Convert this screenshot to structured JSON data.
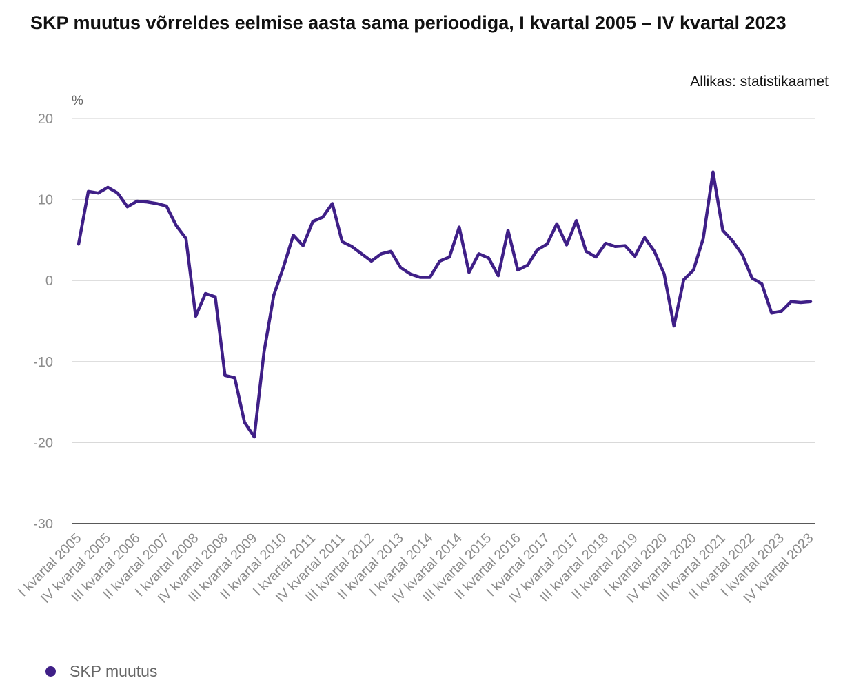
{
  "chart_data": {
    "type": "line",
    "title": "SKP muutus võrreldes eelmise aasta sama perioodiga, I kvartal 2005 – IV kvartal 2023",
    "source": "Allikas: statistikaamet",
    "ylabel": "%",
    "ylim": [
      -30,
      20
    ],
    "yticks": [
      20,
      10,
      0,
      -10,
      -20,
      -30
    ],
    "grid": true,
    "legend_position": "bottom-left",
    "x": [
      "I kvartal 2005",
      "II kvartal 2005",
      "III kvartal 2005",
      "IV kvartal 2005",
      "I kvartal 2006",
      "II kvartal 2006",
      "III kvartal 2006",
      "IV kvartal 2006",
      "I kvartal 2007",
      "II kvartal 2007",
      "III kvartal 2007",
      "IV kvartal 2007",
      "I kvartal 2008",
      "II kvartal 2008",
      "III kvartal 2008",
      "IV kvartal 2008",
      "I kvartal 2009",
      "II kvartal 2009",
      "III kvartal 2009",
      "IV kvartal 2009",
      "I kvartal 2010",
      "II kvartal 2010",
      "III kvartal 2010",
      "IV kvartal 2010",
      "I kvartal 2011",
      "II kvartal 2011",
      "III kvartal 2011",
      "IV kvartal 2011",
      "I kvartal 2012",
      "II kvartal 2012",
      "III kvartal 2012",
      "IV kvartal 2012",
      "I kvartal 2013",
      "II kvartal 2013",
      "III kvartal 2013",
      "IV kvartal 2013",
      "I kvartal 2014",
      "II kvartal 2014",
      "III kvartal 2014",
      "IV kvartal 2014",
      "I kvartal 2015",
      "II kvartal 2015",
      "III kvartal 2015",
      "IV kvartal 2015",
      "I kvartal 2016",
      "II kvartal 2016",
      "III kvartal 2016",
      "IV kvartal 2016",
      "I kvartal 2017",
      "II kvartal 2017",
      "III kvartal 2017",
      "IV kvartal 2017",
      "I kvartal 2018",
      "II kvartal 2018",
      "III kvartal 2018",
      "IV kvartal 2018",
      "I kvartal 2019",
      "II kvartal 2019",
      "III kvartal 2019",
      "IV kvartal 2019",
      "I kvartal 2020",
      "II kvartal 2020",
      "III kvartal 2020",
      "IV kvartal 2020",
      "I kvartal 2021",
      "II kvartal 2021",
      "III kvartal 2021",
      "IV kvartal 2021",
      "I kvartal 2022",
      "II kvartal 2022",
      "III kvartal 2022",
      "IV kvartal 2022",
      "I kvartal 2023",
      "II kvartal 2023",
      "III kvartal 2023",
      "IV kvartal 2023"
    ],
    "xtick_labels": [
      "I kvartal 2005",
      "IV kvartal 2005",
      "III kvartal 2006",
      "II kvartal 2007",
      "I kvartal 2008",
      "IV kvartal 2008",
      "III kvartal 2009",
      "II kvartal 2010",
      "I kvartal 2011",
      "IV kvartal 2011",
      "III kvartal 2012",
      "II kvartal 2013",
      "I kvartal 2014",
      "IV kvartal 2014",
      "III kvartal 2015",
      "II kvartal 2016",
      "I kvartal 2017",
      "IV kvartal 2017",
      "III kvartal 2018",
      "II kvartal 2019",
      "I kvartal 2020",
      "IV kvartal 2020",
      "III kvartal 2021",
      "II kvartal 2022",
      "I kvartal 2023",
      "IV kvartal 2023"
    ],
    "series": [
      {
        "name": "SKP muutus",
        "color": "#3f1f87",
        "values": [
          4.5,
          11.0,
          10.8,
          11.5,
          10.8,
          9.1,
          9.8,
          9.7,
          9.5,
          9.2,
          6.8,
          5.2,
          -4.4,
          -1.6,
          -2.0,
          -11.7,
          -12.0,
          -17.5,
          -19.3,
          -8.8,
          -1.8,
          1.7,
          5.6,
          4.3,
          7.3,
          7.8,
          9.5,
          4.8,
          4.2,
          3.3,
          2.4,
          3.3,
          3.6,
          1.6,
          0.8,
          0.4,
          0.4,
          2.4,
          2.9,
          6.6,
          1.0,
          3.3,
          2.8,
          0.6,
          6.2,
          1.3,
          1.9,
          3.8,
          4.5,
          7.0,
          4.4,
          7.4,
          3.6,
          2.9,
          4.6,
          4.2,
          4.3,
          3.0,
          5.3,
          3.6,
          0.8,
          -5.6,
          0.1,
          1.3,
          5.2,
          13.4,
          6.2,
          4.9,
          3.2,
          0.3,
          -0.4,
          -4.0,
          -3.8,
          -2.6,
          -2.7,
          -2.6
        ]
      }
    ]
  }
}
